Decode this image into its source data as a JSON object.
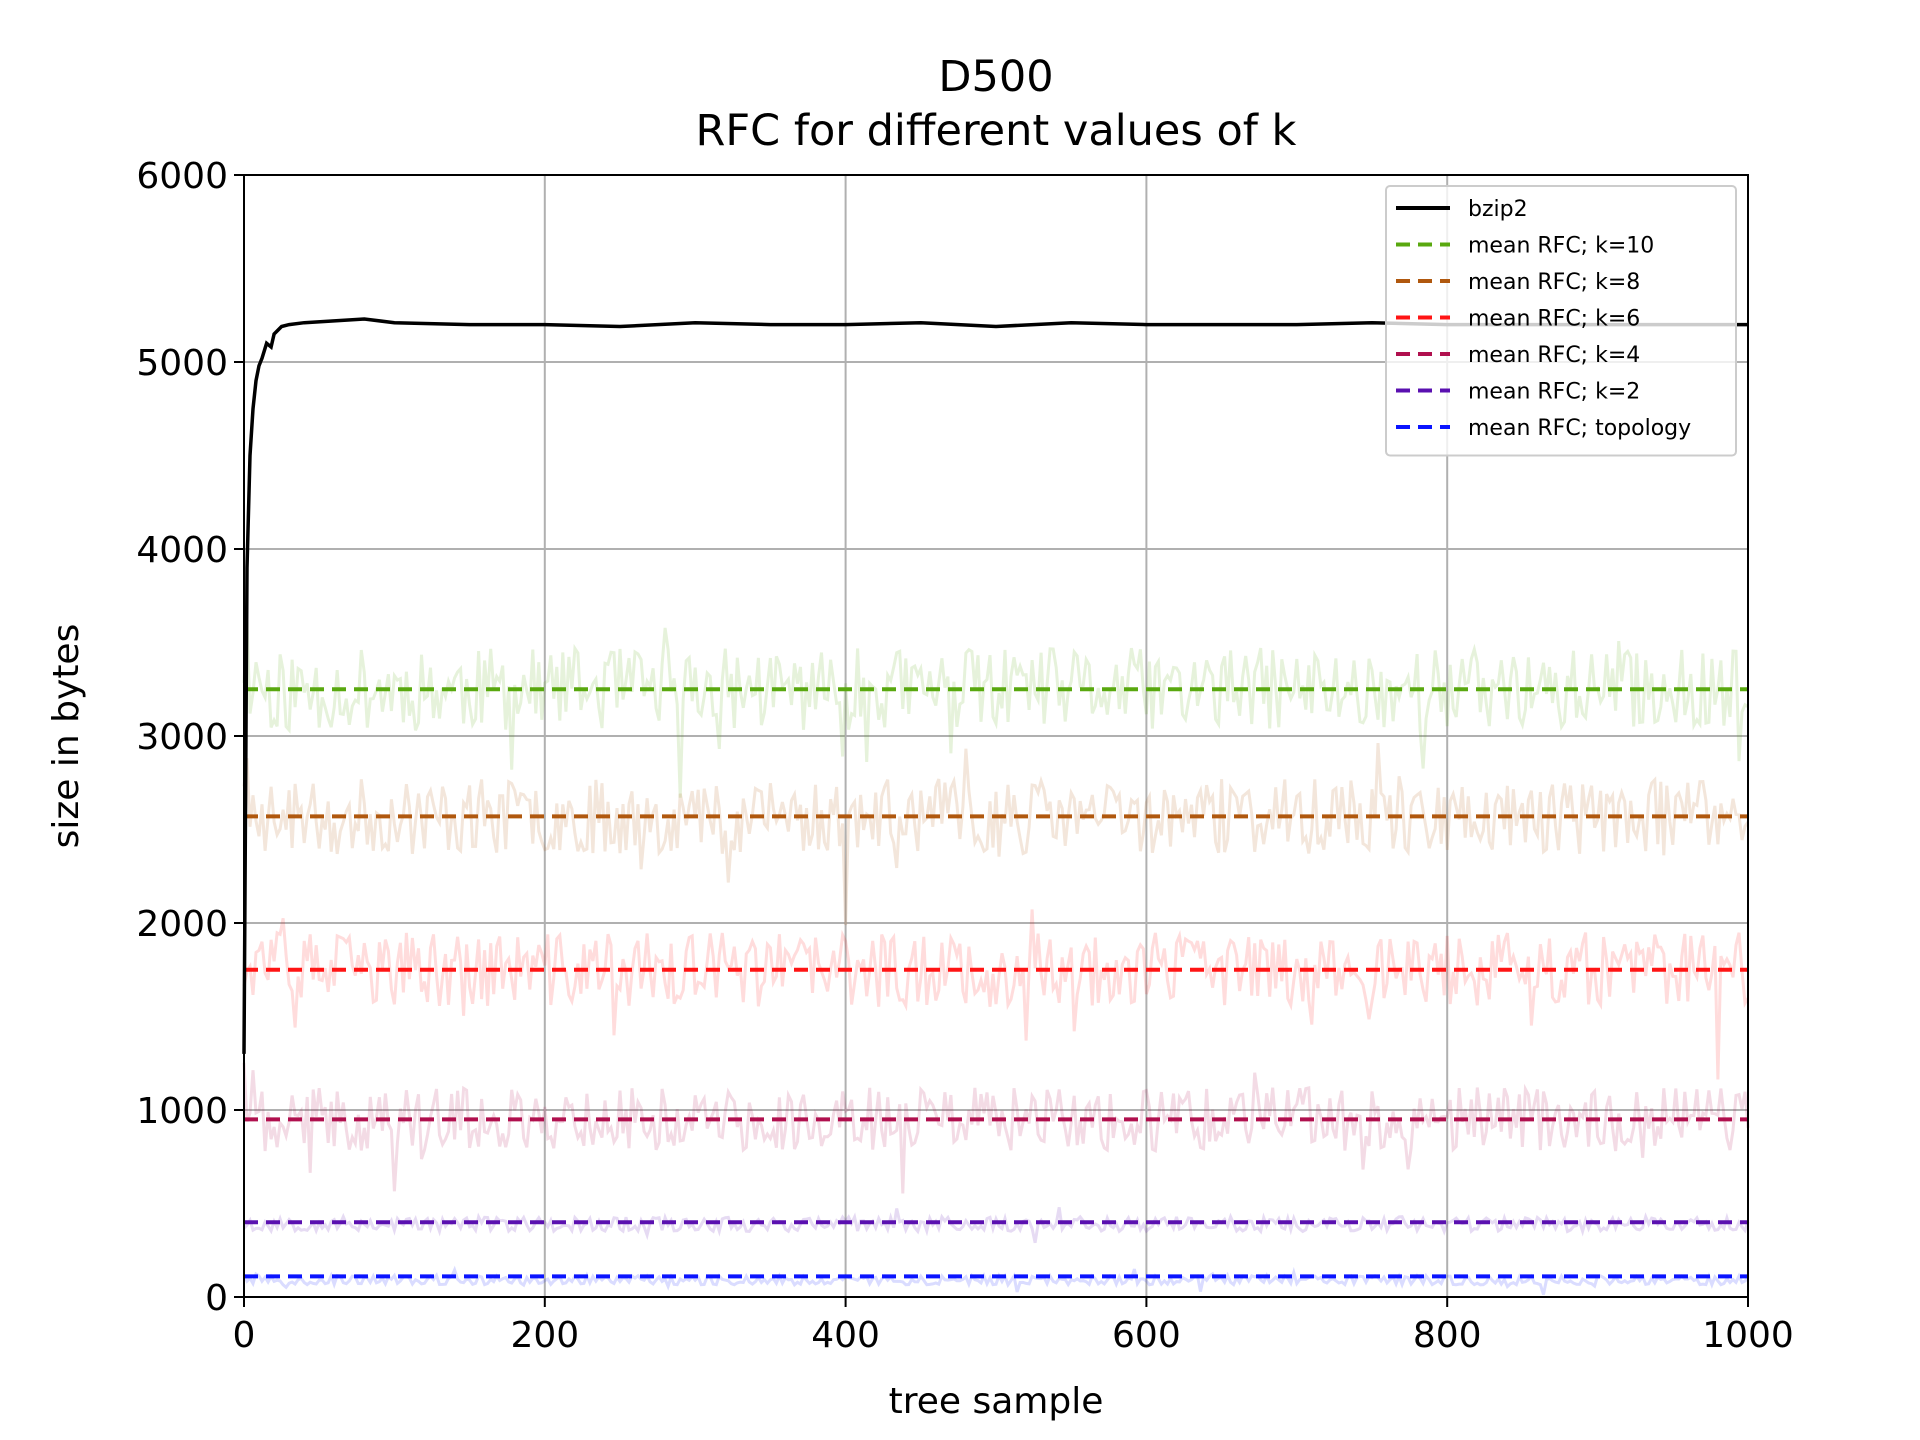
{
  "chart_data": {
    "type": "line",
    "title": "D500",
    "subtitle": "RFC for different values of k",
    "xlabel": "tree sample",
    "ylabel": "size in bytes",
    "xlim": [
      0,
      1000
    ],
    "ylim": [
      0,
      6000
    ],
    "xticks": [
      "0",
      "200",
      "400",
      "600",
      "800",
      "1000"
    ],
    "yticks": [
      "0",
      "1000",
      "2000",
      "3000",
      "4000",
      "5000",
      "6000"
    ],
    "grid": true,
    "legend_position": "top-right",
    "bzip2": {
      "name": "bzip2",
      "color": "#000000",
      "x": [
        0,
        2,
        4,
        6,
        8,
        10,
        12,
        15,
        18,
        20,
        25,
        30,
        40,
        60,
        80,
        100,
        150,
        200,
        250,
        300,
        350,
        400,
        450,
        500,
        550,
        600,
        650,
        700,
        750,
        800,
        850,
        900,
        950,
        1000
      ],
      "y": [
        1300,
        3900,
        4500,
        4750,
        4900,
        4980,
        5020,
        5100,
        5080,
        5150,
        5190,
        5200,
        5210,
        5220,
        5230,
        5210,
        5200,
        5200,
        5190,
        5210,
        5200,
        5200,
        5210,
        5190,
        5210,
        5200,
        5200,
        5200,
        5210,
        5200,
        5200,
        5200,
        5200,
        5200
      ]
    },
    "series": [
      {
        "name": "mean RFC; k=10",
        "color": "#59a80f",
        "mean": 3250,
        "noise_center": 3250,
        "noise_amp": 220,
        "seed": 11
      },
      {
        "name": "mean RFC; k=8",
        "color": "#b0580e",
        "mean": 2570,
        "noise_center": 2570,
        "noise_amp": 200,
        "seed": 23
      },
      {
        "name": "mean RFC; k=6",
        "color": "#ff1414",
        "mean": 1750,
        "noise_center": 1750,
        "noise_amp": 200,
        "seed": 37
      },
      {
        "name": "mean RFC; k=4",
        "color": "#b0104e",
        "mean": 950,
        "noise_center": 950,
        "noise_amp": 170,
        "seed": 41
      },
      {
        "name": "mean RFC; k=2",
        "color": "#5a10b0",
        "mean": 400,
        "noise_center": 390,
        "noise_amp": 40,
        "seed": 53
      },
      {
        "name": "mean RFC; topology",
        "color": "#0a14ff",
        "mean": 110,
        "noise_center": 90,
        "noise_amp": 25,
        "seed": 67
      }
    ]
  }
}
